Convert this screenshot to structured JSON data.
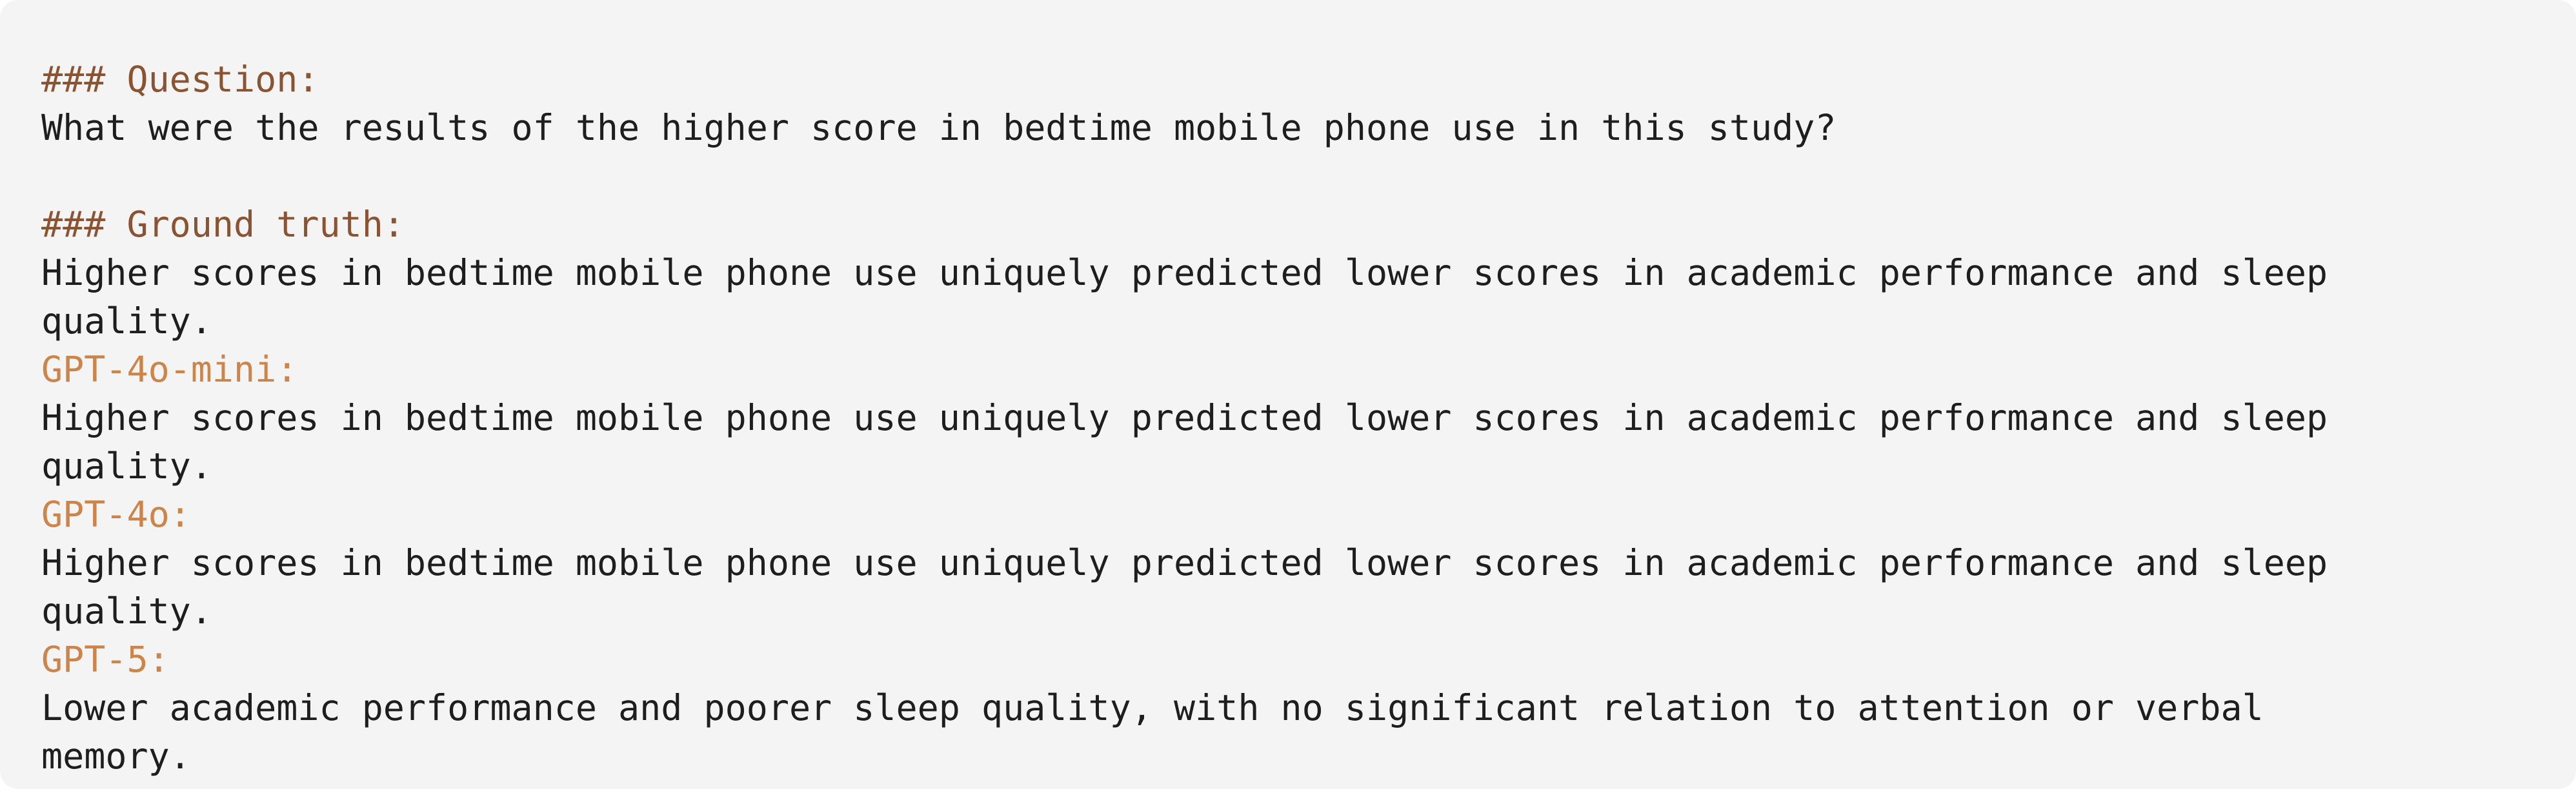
{
  "question": {
    "heading": "### Question:",
    "text": "What were the results of the higher score in bedtime mobile phone use in this study?"
  },
  "ground_truth": {
    "heading": "### Ground truth:",
    "text": "Higher scores in bedtime mobile phone use uniquely predicted lower scores in academic performance and sleep quality."
  },
  "answers": [
    {
      "model": "GPT-4o-mini:",
      "text": "Higher scores in bedtime mobile phone use uniquely predicted lower scores in academic performance and sleep quality."
    },
    {
      "model": "GPT-4o:",
      "text": "Higher scores in bedtime mobile phone use uniquely predicted lower scores in academic performance and sleep quality."
    },
    {
      "model": "GPT-5:",
      "text": "Lower academic performance and poorer sleep quality, with no significant relation to attention or verbal memory."
    }
  ],
  "colors": {
    "background": "#f4f4f4",
    "heading": "#8a5433",
    "model_label": "#cc8449",
    "body_text": "#1e1e1e"
  }
}
